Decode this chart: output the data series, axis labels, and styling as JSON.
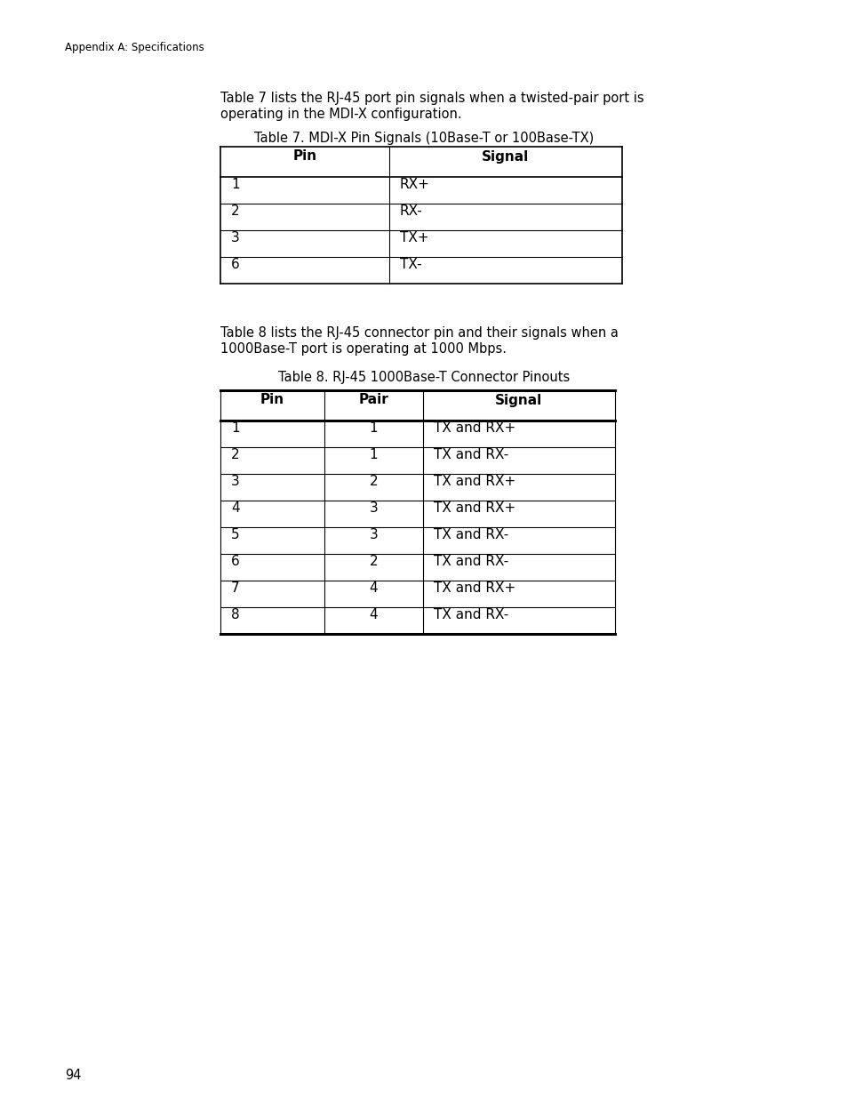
{
  "page_header": "Appendix A: Specifications",
  "page_number": "94",
  "para1_line1": "Table 7 lists the RJ-45 port pin signals when a twisted-pair port is",
  "para1_line2": "operating in the MDI-X configuration.",
  "table1_title": "Table 7. MDI-X Pin Signals (10Base-T or 100Base-TX)",
  "table1_headers": [
    "Pin",
    "Signal"
  ],
  "table1_rows": [
    [
      "1",
      "RX+"
    ],
    [
      "2",
      "RX-"
    ],
    [
      "3",
      "TX+"
    ],
    [
      "6",
      "TX-"
    ]
  ],
  "para2_line1": "Table 8 lists the RJ-45 connector pin and their signals when a",
  "para2_line2": "1000Base-T port is operating at 1000 Mbps.",
  "table2_title": "Table 8. RJ-45 1000Base-T Connector Pinouts",
  "table2_headers": [
    "Pin",
    "Pair",
    "Signal"
  ],
  "table2_rows": [
    [
      "1",
      "1",
      "TX and RX+"
    ],
    [
      "2",
      "1",
      "TX and RX-"
    ],
    [
      "3",
      "2",
      "TX and RX+"
    ],
    [
      "4",
      "3",
      "TX and RX+"
    ],
    [
      "5",
      "3",
      "TX and RX-"
    ],
    [
      "6",
      "2",
      "TX and RX-"
    ],
    [
      "7",
      "4",
      "TX and RX+"
    ],
    [
      "8",
      "4",
      "TX and RX-"
    ]
  ],
  "bg_color": "#ffffff",
  "text_color": "#000000"
}
